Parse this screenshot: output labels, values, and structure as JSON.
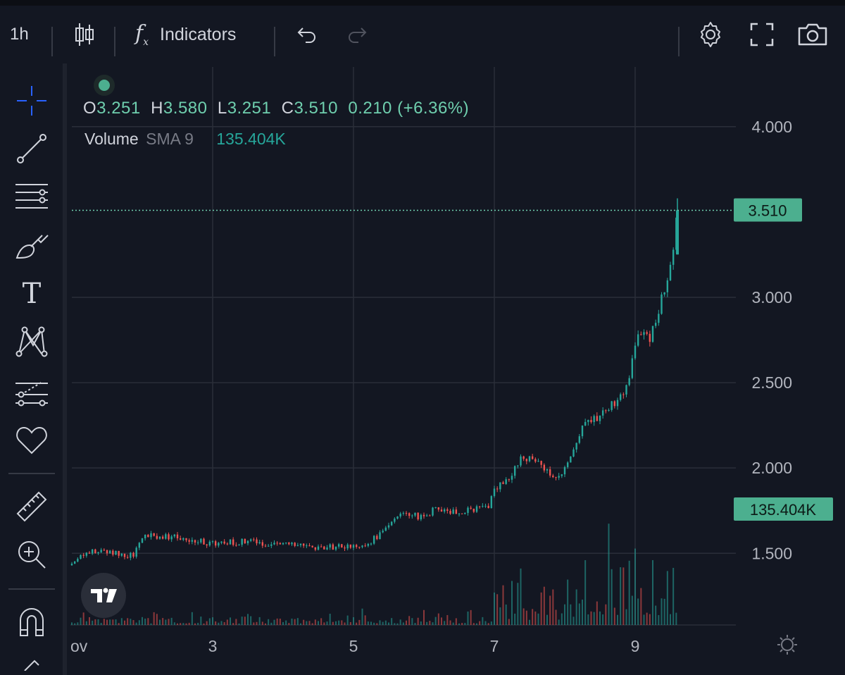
{
  "toolbar": {
    "interval": "1h",
    "indicators_label": "Indicators",
    "icons": [
      "candles-icon",
      "fx-icon",
      "undo-icon",
      "redo-icon",
      "settings-icon",
      "fullscreen-icon",
      "camera-icon"
    ]
  },
  "sidebar": {
    "tools": [
      "crosshair-icon",
      "trendline-icon",
      "horizontal-lines-icon",
      "brush-icon",
      "text-icon",
      "pattern-icon",
      "forecast-icon",
      "heart-icon",
      "ruler-icon",
      "zoom-in-icon",
      "magnet-icon"
    ]
  },
  "legend": {
    "o_label": "O",
    "o_value": "3.251",
    "h_label": "H",
    "h_value": "3.580",
    "l_label": "L",
    "l_value": "3.251",
    "c_label": "C",
    "c_value": "3.510",
    "change": "0.210 (+6.36%)",
    "volume_label": "Volume",
    "sma_label": "SMA 9",
    "volume_value": "135.404K"
  },
  "collapse_arrow": "‹",
  "colors": {
    "up": "#26a69a",
    "down": "#ef5350",
    "background": "#131722",
    "grid": "#2a2e39",
    "last_price_bg": "#4caf8f"
  },
  "chart_data": {
    "type": "candlestick",
    "interval": "1h",
    "y_ticks": [
      "4.000",
      "3.000",
      "2.500",
      "2.000",
      "1.500"
    ],
    "y_tick_values": [
      4.0,
      3.0,
      2.5,
      2.0,
      1.5
    ],
    "ylim": [
      1.08,
      4.35
    ],
    "x_ticks": [
      "ov",
      "3",
      "5",
      "7",
      "9"
    ],
    "x_tick_days": [
      1,
      3,
      5,
      7,
      9
    ],
    "xlim": [
      1.0,
      11.4
    ],
    "last_price_label": "3.510",
    "last_price": 3.51,
    "last_volume_label": "135.404K",
    "path": [
      [
        1.0,
        1.43
      ],
      [
        1.1,
        1.48
      ],
      [
        1.3,
        1.52
      ],
      [
        1.5,
        1.51
      ],
      [
        1.7,
        1.5
      ],
      [
        1.8,
        1.48
      ],
      [
        1.9,
        1.5
      ],
      [
        2.0,
        1.6
      ],
      [
        2.2,
        1.6
      ],
      [
        2.5,
        1.59
      ],
      [
        2.8,
        1.57
      ],
      [
        3.0,
        1.56
      ],
      [
        3.5,
        1.57
      ],
      [
        4.0,
        1.55
      ],
      [
        4.5,
        1.53
      ],
      [
        4.8,
        1.54
      ],
      [
        5.2,
        1.56
      ],
      [
        5.4,
        1.62
      ],
      [
        5.6,
        1.72
      ],
      [
        5.8,
        1.74
      ],
      [
        6.0,
        1.7
      ],
      [
        6.1,
        1.75
      ],
      [
        6.5,
        1.75
      ],
      [
        6.9,
        1.76
      ],
      [
        7.0,
        1.86
      ],
      [
        7.2,
        1.95
      ],
      [
        7.4,
        2.06
      ],
      [
        7.6,
        2.06
      ],
      [
        7.7,
        2.01
      ],
      [
        7.85,
        1.93
      ],
      [
        7.95,
        1.96
      ],
      [
        8.1,
        2.08
      ],
      [
        8.25,
        2.25
      ],
      [
        8.4,
        2.28
      ],
      [
        8.55,
        2.33
      ],
      [
        8.7,
        2.38
      ],
      [
        8.85,
        2.45
      ],
      [
        8.95,
        2.6
      ],
      [
        9.05,
        2.78
      ],
      [
        9.2,
        2.76
      ],
      [
        9.35,
        2.95
      ],
      [
        9.45,
        3.1
      ],
      [
        9.55,
        3.28
      ],
      [
        9.6,
        3.51
      ]
    ],
    "volume_note": "volume bars rise sharply after day 7; last bar 135.404K"
  }
}
